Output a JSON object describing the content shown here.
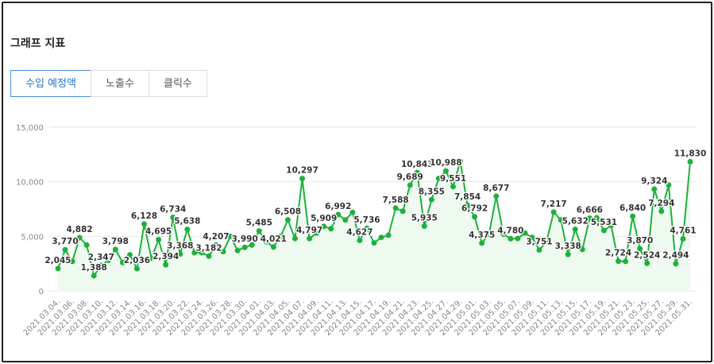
{
  "header": {
    "title": "그래프 지표"
  },
  "tabs": [
    "수입 예정액",
    "노출수",
    "클릭수"
  ],
  "chart_data": {
    "type": "line",
    "categories": [
      "2021.03.04.",
      null,
      "2021.03.06.",
      null,
      "2021.03.08.",
      null,
      "2021.03.10.",
      null,
      "2021.03.12.",
      null,
      "2021.03.14.",
      null,
      "2021.03.16.",
      null,
      "2021.03.18.",
      null,
      "2021.03.20.",
      null,
      "2021.03.22.",
      null,
      "2021.03.24.",
      null,
      "2021.03.26.",
      null,
      "2021.03.28.",
      null,
      "2021.03.30.",
      null,
      "2021.04.01.",
      null,
      "2021.04.03.",
      null,
      "2021.04.05.",
      null,
      "2021.04.07.",
      null,
      "2021.04.09.",
      null,
      "2021.04.11.",
      null,
      "2021.04.13.",
      null,
      "2021.04.15.",
      null,
      "2021.04.17.",
      null,
      "2021.04.19.",
      null,
      "2021.04.21.",
      null,
      "2021.04.23.",
      null,
      "2021.04.25.",
      null,
      "2021.04.27.",
      null,
      "2021.04.29.",
      null,
      "2021.05.01.",
      null,
      "2021.05.03.",
      null,
      "2021.05.05.",
      null,
      "2021.05.07.",
      null,
      "2021.05.09.",
      null,
      "2021.05.11.",
      null,
      "2021.05.13.",
      null,
      "2021.05.15.",
      null,
      "2021.05.17.",
      null,
      "2021.05.19.",
      null,
      "2021.05.21.",
      null,
      "2021.05.23.",
      null,
      "2021.05.25.",
      null,
      "2021.05.27.",
      null,
      "2021.05.29.",
      null,
      "2021.05.31."
    ],
    "values": [
      2045,
      3770,
      2700,
      4882,
      4200,
      1388,
      2347,
      2800,
      3798,
      2600,
      3300,
      2036,
      6128,
      3000,
      4695,
      2394,
      6734,
      3368,
      5638,
      3500,
      3500,
      3182,
      4207,
      3600,
      5000,
      3700,
      3990,
      4200,
      5485,
      4500,
      4021,
      5000,
      6508,
      4800,
      10297,
      4797,
      5300,
      5909,
      5700,
      6992,
      6500,
      7200,
      4627,
      5736,
      4400,
      4900,
      5100,
      7588,
      7300,
      9689,
      10843,
      5935,
      8355,
      10300,
      10988,
      9551,
      11900,
      7854,
      6792,
      4375,
      5200,
      8677,
      5200,
      4780,
      4800,
      5300,
      4900,
      3751,
      4500,
      7217,
      6500,
      3338,
      5632,
      3800,
      6666,
      6700,
      5531,
      6000,
      2724,
      2700,
      6840,
      3870,
      2524,
      9324,
      7294,
      9700,
      2494,
      4761,
      11830
    ],
    "value_labels": [
      "2,045",
      "3,770",
      null,
      "4,882",
      null,
      "1,388",
      "2,347",
      null,
      "3,798",
      null,
      null,
      "2,036",
      "6,128",
      null,
      "4,695",
      "2,394",
      "6,734",
      "3,368",
      "5,638",
      null,
      null,
      "3,182",
      "4,207",
      null,
      null,
      null,
      "3,990",
      null,
      "5,485",
      null,
      "4,021",
      null,
      "6,508",
      null,
      "10,297",
      "4,797",
      null,
      "5,909",
      null,
      "6,992",
      null,
      null,
      "4,627",
      "5,736",
      null,
      null,
      null,
      "7,588",
      null,
      "9,689",
      "10,843",
      "5,935",
      "8,355",
      null,
      "10,988",
      "9,551",
      null,
      "7,854",
      "6,792",
      "4,375",
      null,
      "8,677",
      null,
      "4,780",
      null,
      null,
      null,
      "3,751",
      null,
      "7,217",
      null,
      "3,338",
      "5,632",
      null,
      "6,666",
      null,
      "5,531",
      null,
      "2,724",
      null,
      "6,840",
      "3,870",
      "2,524",
      "9,324",
      "7,294",
      null,
      "2,494",
      "4,761",
      "11,830"
    ],
    "color": "#1eb03c",
    "ylim": [
      0,
      15000
    ],
    "yticks": [
      0,
      {
        "value": 5000,
        "label": "5,000"
      },
      {
        "value": 10000,
        "label": "10,000"
      },
      {
        "value": 15000,
        "label": "15,000"
      }
    ],
    "grid": true
  }
}
